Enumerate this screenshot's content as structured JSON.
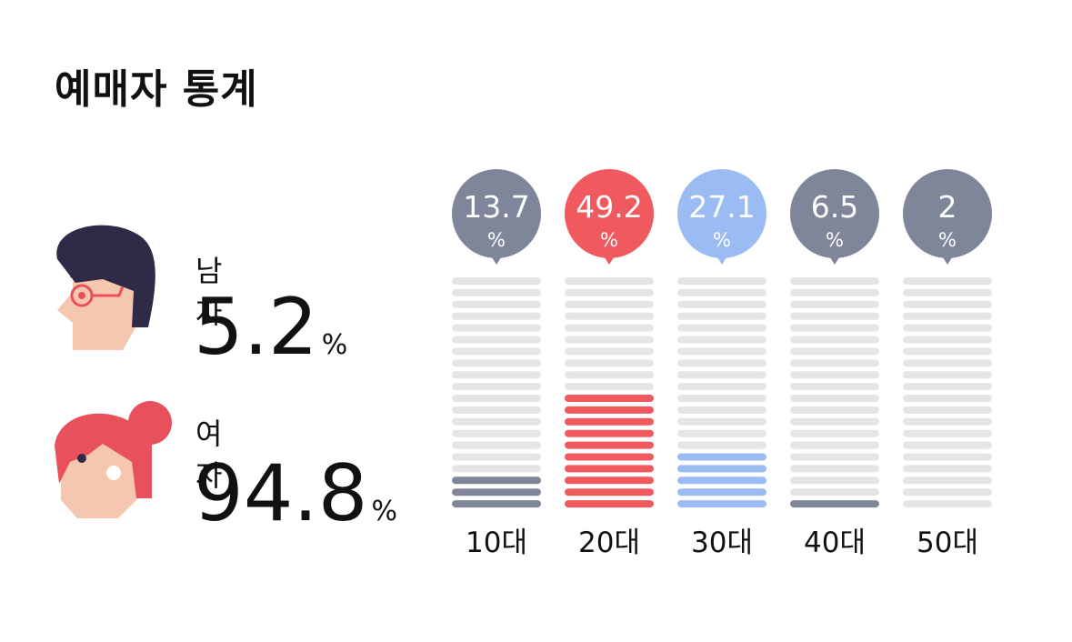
{
  "title": "예매자 통계",
  "gender": {
    "male": {
      "label": "남자",
      "value": "5.2",
      "unit": "%"
    },
    "female": {
      "label": "여자",
      "value": "94.8",
      "unit": "%"
    }
  },
  "colors": {
    "gray": "#80869a",
    "red": "#f05a5f",
    "blue": "#9bbcf2",
    "track": "#e5e5e5"
  },
  "chart_data": {
    "type": "bar",
    "categories": [
      "10대",
      "20대",
      "30대",
      "40대",
      "50대"
    ],
    "values": [
      13.7,
      49.2,
      27.1,
      6.5,
      2
    ],
    "value_labels": [
      "13.7",
      "49.2",
      "27.1",
      "6.5",
      "2"
    ],
    "unit": "%",
    "filled_segments": [
      3,
      10,
      5,
      1,
      0
    ],
    "total_segments": 20,
    "bar_colors": [
      "#80869a",
      "#f05a5f",
      "#9bbcf2",
      "#80869a",
      "#80869a"
    ],
    "ylim": [
      0,
      100
    ]
  }
}
